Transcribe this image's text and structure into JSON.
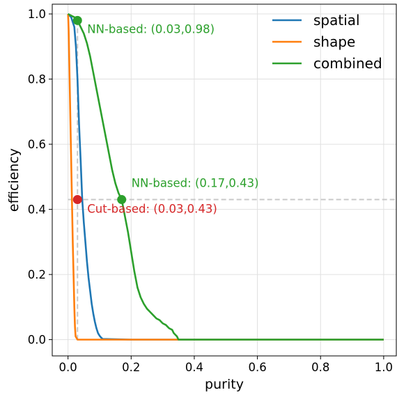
{
  "chart_data": {
    "type": "line",
    "xlabel": "purity",
    "ylabel": "efficiency",
    "xlim": [
      -0.05,
      1.04
    ],
    "ylim": [
      -0.05,
      1.03
    ],
    "xticks": [
      0.0,
      0.2,
      0.4,
      0.6,
      0.8,
      1.0
    ],
    "xtick_labels": [
      "0.0",
      "0.2",
      "0.4",
      "0.6",
      "0.8",
      "1.0"
    ],
    "yticks": [
      0.0,
      0.2,
      0.4,
      0.6,
      0.8,
      1.0
    ],
    "ytick_labels": [
      "0.0",
      "0.2",
      "0.4",
      "0.6",
      "0.8",
      "1.0"
    ],
    "grid": true,
    "legend_position": "top-right",
    "series": [
      {
        "name": "spatial",
        "color": "#1f77b4",
        "x": [
          0.0,
          0.01,
          0.02,
          0.025,
          0.03,
          0.035,
          0.04,
          0.045,
          0.05,
          0.055,
          0.06,
          0.065,
          0.07,
          0.075,
          0.08,
          0.085,
          0.09,
          0.095,
          0.1,
          0.105,
          0.11,
          0.2,
          0.4,
          0.6,
          0.8,
          1.0
        ],
        "y": [
          1.0,
          0.99,
          0.96,
          0.9,
          0.8,
          0.66,
          0.55,
          0.43,
          0.36,
          0.3,
          0.24,
          0.19,
          0.15,
          0.11,
          0.08,
          0.055,
          0.035,
          0.02,
          0.012,
          0.006,
          0.002,
          0.0,
          0.0,
          0.0,
          0.0,
          0.0
        ]
      },
      {
        "name": "shape",
        "color": "#ff7f0e",
        "x": [
          0.0,
          0.001,
          0.002,
          0.003,
          0.005,
          0.007,
          0.009,
          0.012,
          0.015,
          0.018,
          0.02,
          0.022,
          0.024,
          0.03,
          0.2,
          0.4,
          0.6,
          0.8,
          1.0
        ],
        "y": [
          1.0,
          0.98,
          0.95,
          0.9,
          0.8,
          0.7,
          0.6,
          0.45,
          0.3,
          0.18,
          0.1,
          0.04,
          0.01,
          0.0,
          0.0,
          0.0,
          0.0,
          0.0,
          0.0
        ]
      },
      {
        "name": "combined",
        "color": "#2ca02c",
        "x": [
          0.0,
          0.01,
          0.02,
          0.03,
          0.04,
          0.05,
          0.06,
          0.07,
          0.08,
          0.09,
          0.1,
          0.11,
          0.12,
          0.13,
          0.14,
          0.15,
          0.16,
          0.17,
          0.18,
          0.19,
          0.2,
          0.21,
          0.22,
          0.23,
          0.24,
          0.25,
          0.26,
          0.27,
          0.28,
          0.29,
          0.3,
          0.31,
          0.32,
          0.33,
          0.335,
          0.34,
          0.345,
          0.35,
          0.4,
          0.6,
          0.8,
          1.0
        ],
        "y": [
          1.0,
          0.995,
          0.99,
          0.98,
          0.96,
          0.94,
          0.91,
          0.87,
          0.82,
          0.77,
          0.72,
          0.67,
          0.62,
          0.57,
          0.52,
          0.48,
          0.45,
          0.43,
          0.38,
          0.33,
          0.27,
          0.21,
          0.16,
          0.13,
          0.11,
          0.095,
          0.085,
          0.075,
          0.065,
          0.06,
          0.05,
          0.045,
          0.035,
          0.03,
          0.02,
          0.015,
          0.01,
          0.0,
          0.0,
          0.0,
          0.0,
          0.0
        ]
      }
    ],
    "reference_lines": {
      "color": "#c8c8c8",
      "horizontal_y": 0.43,
      "vertical_x": 0.03
    },
    "markers": [
      {
        "x": 0.03,
        "y": 0.98,
        "color": "#2ca02c",
        "label": "NN-based: (0.03,0.98)"
      },
      {
        "x": 0.17,
        "y": 0.43,
        "color": "#2ca02c",
        "label": "NN-based: (0.17,0.43)"
      },
      {
        "x": 0.03,
        "y": 0.43,
        "color": "#d62728",
        "label": "Cut-based: (0.03,0.43)"
      }
    ]
  }
}
